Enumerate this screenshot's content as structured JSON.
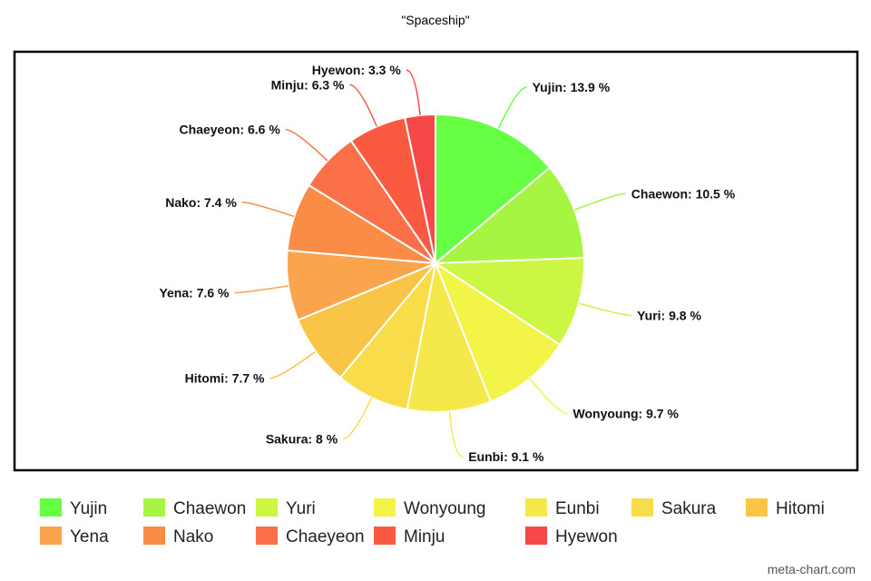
{
  "chart_data": {
    "type": "pie",
    "title": "\"Spaceship\"",
    "label_format": "{name}: {value} %",
    "watermark": "meta-chart.com",
    "legend": "bottom",
    "slices": [
      {
        "name": "Yujin",
        "value": 13.9,
        "color": "#66ff44"
      },
      {
        "name": "Chaewon",
        "value": 10.5,
        "color": "#a6f542"
      },
      {
        "name": "Yuri",
        "value": 9.8,
        "color": "#ccf544"
      },
      {
        "name": "Wonyoung",
        "value": 9.7,
        "color": "#f2f547"
      },
      {
        "name": "Eunbi",
        "value": 9.1,
        "color": "#f5e84a"
      },
      {
        "name": "Sakura",
        "value": 8,
        "color": "#f8dc4a"
      },
      {
        "name": "Hitomi",
        "value": 7.7,
        "color": "#fac447"
      },
      {
        "name": "Yena",
        "value": 7.6,
        "color": "#fba44e"
      },
      {
        "name": "Nako",
        "value": 7.4,
        "color": "#fb8c45"
      },
      {
        "name": "Chaeyeon",
        "value": 6.6,
        "color": "#fb7048"
      },
      {
        "name": "Minju",
        "value": 6.3,
        "color": "#fa5a40"
      },
      {
        "name": "Hyewon",
        "value": 3.3,
        "color": "#f74848"
      }
    ]
  }
}
